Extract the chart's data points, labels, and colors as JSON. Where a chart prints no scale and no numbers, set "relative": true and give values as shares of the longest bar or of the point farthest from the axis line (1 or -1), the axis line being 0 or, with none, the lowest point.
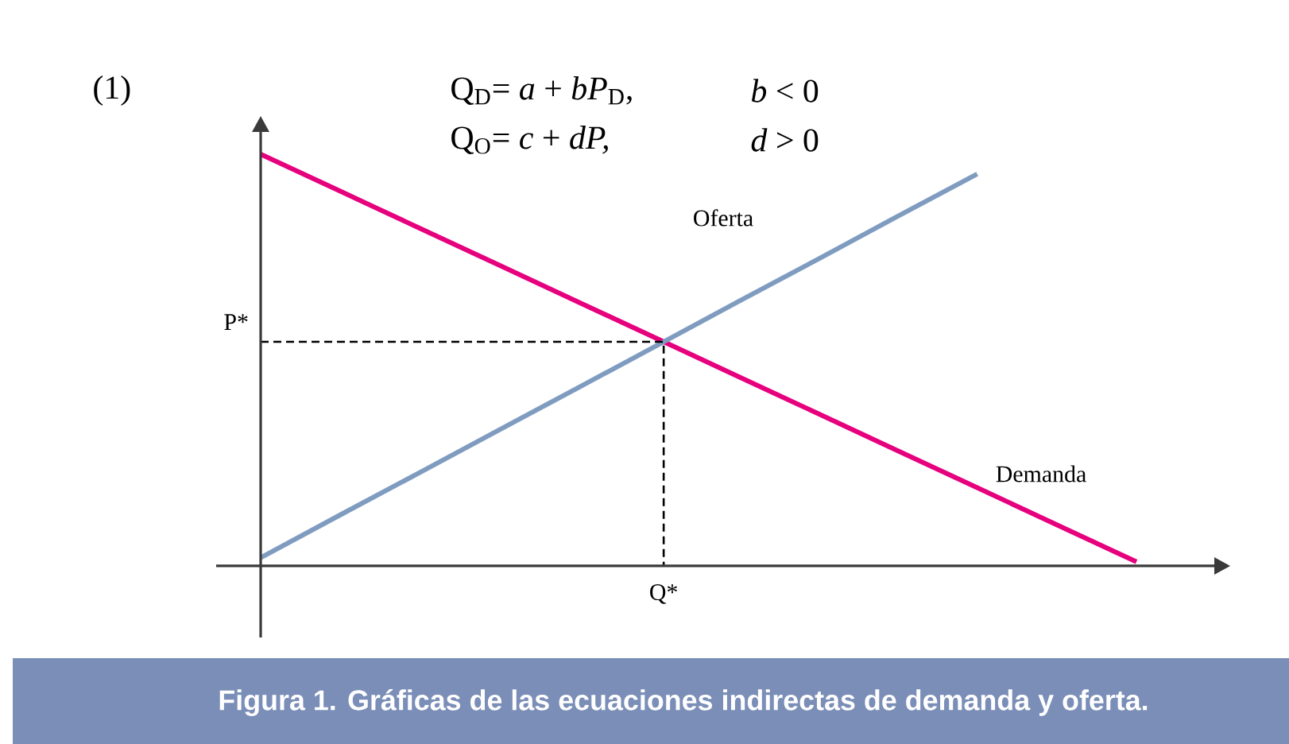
{
  "chart_data": {
    "type": "line",
    "relative": true,
    "title": "Figura 1. Gráficas de las ecuaciones indirectas de demanda y oferta.",
    "annotations": [
      "(1)",
      "Q$_{D}$= *a* + *bP*$_{D}$,",
      "*b* < 0",
      "Q$_{O}$= *c* + *dP,*",
      "*d* > 0",
      "P*",
      "Q*"
    ],
    "categories": [
      null,
      null,
      null,
      null,
      null,
      null,
      null,
      null,
      null,
      null,
      null,
      null
    ],
    "series": [
      {
        "name": "Demanda",
        "color": "#e6007e",
        "values": [
          1,
          0.91,
          0.82,
          0.73,
          0.64,
          0.55,
          0.46,
          0.37,
          0.28,
          0.19,
          0.1,
          0.01
        ]
      },
      {
        "name": "Oferta",
        "color": "#7f9cc0",
        "values": [
          0.02,
          0.124,
          0.227,
          0.331,
          0.434,
          0.538,
          0.642,
          0.745,
          0.849,
          0.952,
          null,
          null
        ]
      }
    ]
  }
}
